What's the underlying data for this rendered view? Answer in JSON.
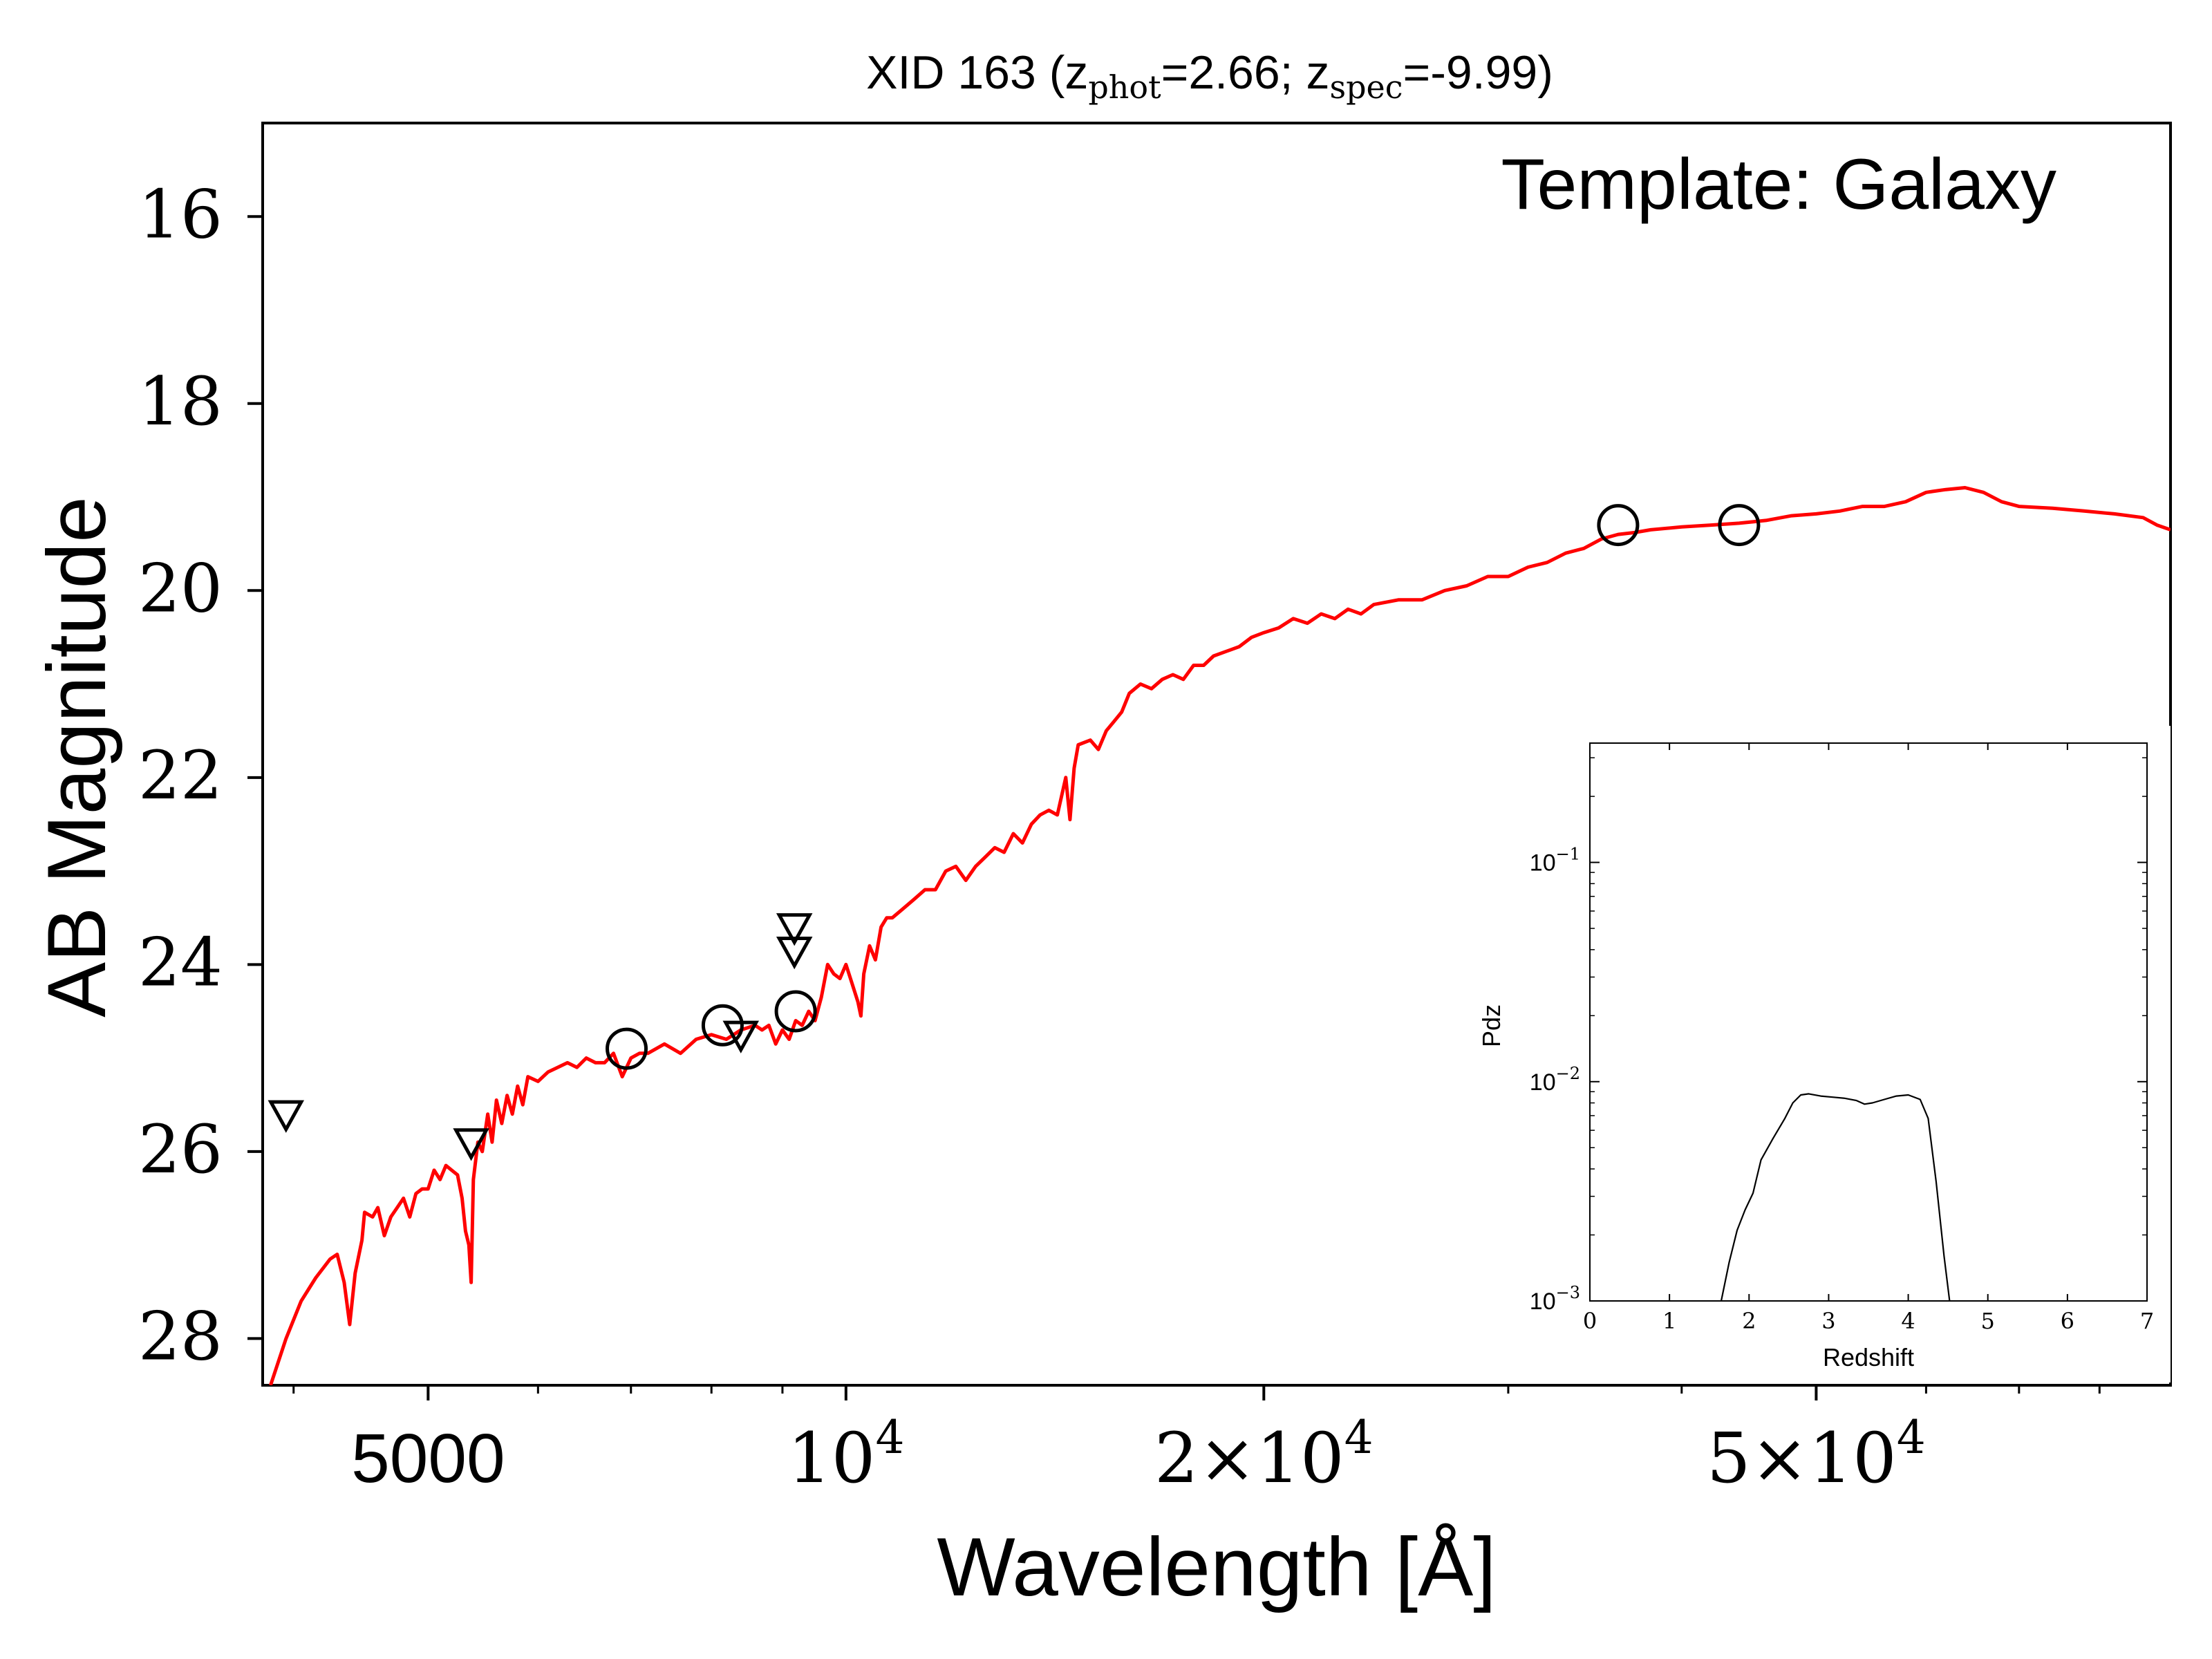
{
  "chart_data": [
    {
      "type": "line",
      "title": {
        "prefix": "XID 163 (z",
        "sub1": "phot",
        "mid": "=2.66; z",
        "sub2": "spec",
        "suffix": "=-9.99)"
      },
      "annotation": "Template: Galaxy",
      "xlabel": "Wavelength [Å]",
      "ylabel": "AB Magnitude",
      "xscale": "log",
      "xlim": [
        3800,
        90000
      ],
      "ylim": [
        28.5,
        15
      ],
      "yticks": [
        {
          "value": 16,
          "label": "16"
        },
        {
          "value": 18,
          "label": "18"
        },
        {
          "value": 20,
          "label": "20"
        },
        {
          "value": 22,
          "label": "22"
        },
        {
          "value": 24,
          "label": "24"
        },
        {
          "value": 26,
          "label": "26"
        },
        {
          "value": 28,
          "label": "28"
        }
      ],
      "xticks": [
        {
          "value": 5000,
          "label": "5000"
        },
        {
          "value": 10000,
          "base": "10",
          "exp": "4"
        },
        {
          "value": 20000,
          "mant": "2×10",
          "exp": "4"
        },
        {
          "value": 50000,
          "mant": "5×10",
          "exp": "4"
        }
      ],
      "xminor_ticks": [
        4000,
        6000,
        7000,
        8000,
        9000,
        30000,
        40000,
        60000,
        70000,
        80000,
        90000
      ],
      "grid": false,
      "colors": {
        "template": "#ff0000",
        "markers": "#000000"
      },
      "template_sed": {
        "color": "#ff0000",
        "points": [
          [
            3850,
            28.5
          ],
          [
            3950,
            28.0
          ],
          [
            4050,
            27.6
          ],
          [
            4150,
            27.35
          ],
          [
            4250,
            27.15
          ],
          [
            4300,
            27.1
          ],
          [
            4350,
            27.4
          ],
          [
            4390,
            27.85
          ],
          [
            4430,
            27.3
          ],
          [
            4480,
            26.95
          ],
          [
            4500,
            26.65
          ],
          [
            4560,
            26.7
          ],
          [
            4600,
            26.6
          ],
          [
            4650,
            26.9
          ],
          [
            4700,
            26.7
          ],
          [
            4750,
            26.6
          ],
          [
            4800,
            26.5
          ],
          [
            4850,
            26.7
          ],
          [
            4900,
            26.45
          ],
          [
            4950,
            26.4
          ],
          [
            5000,
            26.4
          ],
          [
            5050,
            26.2
          ],
          [
            5100,
            26.3
          ],
          [
            5150,
            26.15
          ],
          [
            5200,
            26.2
          ],
          [
            5250,
            26.25
          ],
          [
            5290,
            26.5
          ],
          [
            5320,
            26.85
          ],
          [
            5350,
            27.0
          ],
          [
            5370,
            27.4
          ],
          [
            5390,
            26.3
          ],
          [
            5430,
            25.9
          ],
          [
            5470,
            26.0
          ],
          [
            5520,
            25.6
          ],
          [
            5560,
            25.9
          ],
          [
            5600,
            25.45
          ],
          [
            5650,
            25.7
          ],
          [
            5700,
            25.4
          ],
          [
            5750,
            25.6
          ],
          [
            5800,
            25.3
          ],
          [
            5850,
            25.5
          ],
          [
            5900,
            25.2
          ],
          [
            6000,
            25.25
          ],
          [
            6100,
            25.15
          ],
          [
            6200,
            25.1
          ],
          [
            6300,
            25.05
          ],
          [
            6400,
            25.1
          ],
          [
            6500,
            25.0
          ],
          [
            6600,
            25.05
          ],
          [
            6700,
            25.05
          ],
          [
            6800,
            24.95
          ],
          [
            6900,
            25.2
          ],
          [
            7000,
            25.0
          ],
          [
            7100,
            24.95
          ],
          [
            7200,
            24.95
          ],
          [
            7400,
            24.85
          ],
          [
            7600,
            24.95
          ],
          [
            7800,
            24.8
          ],
          [
            8000,
            24.75
          ],
          [
            8200,
            24.8
          ],
          [
            8400,
            24.7
          ],
          [
            8600,
            24.65
          ],
          [
            8700,
            24.7
          ],
          [
            8800,
            24.65
          ],
          [
            8900,
            24.85
          ],
          [
            9000,
            24.7
          ],
          [
            9100,
            24.8
          ],
          [
            9200,
            24.6
          ],
          [
            9300,
            24.65
          ],
          [
            9400,
            24.5
          ],
          [
            9500,
            24.6
          ],
          [
            9600,
            24.35
          ],
          [
            9700,
            24.0
          ],
          [
            9800,
            24.1
          ],
          [
            9900,
            24.15
          ],
          [
            10000,
            24.0
          ],
          [
            10100,
            24.2
          ],
          [
            10200,
            24.4
          ],
          [
            10250,
            24.55
          ],
          [
            10300,
            24.1
          ],
          [
            10400,
            23.8
          ],
          [
            10500,
            23.95
          ],
          [
            10600,
            23.6
          ],
          [
            10700,
            23.5
          ],
          [
            10800,
            23.5
          ],
          [
            11000,
            23.4
          ],
          [
            11200,
            23.3
          ],
          [
            11400,
            23.2
          ],
          [
            11600,
            23.2
          ],
          [
            11800,
            23.0
          ],
          [
            12000,
            22.95
          ],
          [
            12200,
            23.1
          ],
          [
            12400,
            22.95
          ],
          [
            12600,
            22.85
          ],
          [
            12800,
            22.75
          ],
          [
            13000,
            22.8
          ],
          [
            13200,
            22.6
          ],
          [
            13400,
            22.7
          ],
          [
            13600,
            22.5
          ],
          [
            13800,
            22.4
          ],
          [
            14000,
            22.35
          ],
          [
            14200,
            22.4
          ],
          [
            14400,
            22.0
          ],
          [
            14500,
            22.45
          ],
          [
            14600,
            21.9
          ],
          [
            14700,
            21.65
          ],
          [
            15000,
            21.6
          ],
          [
            15200,
            21.7
          ],
          [
            15400,
            21.5
          ],
          [
            15600,
            21.4
          ],
          [
            15800,
            21.3
          ],
          [
            16000,
            21.1
          ],
          [
            16300,
            21.0
          ],
          [
            16600,
            21.05
          ],
          [
            16900,
            20.95
          ],
          [
            17200,
            20.9
          ],
          [
            17500,
            20.95
          ],
          [
            17800,
            20.8
          ],
          [
            18100,
            20.8
          ],
          [
            18400,
            20.7
          ],
          [
            18800,
            20.65
          ],
          [
            19200,
            20.6
          ],
          [
            19600,
            20.5
          ],
          [
            20000,
            20.45
          ],
          [
            20500,
            20.4
          ],
          [
            21000,
            20.3
          ],
          [
            21500,
            20.35
          ],
          [
            22000,
            20.25
          ],
          [
            22500,
            20.3
          ],
          [
            23000,
            20.2
          ],
          [
            23500,
            20.25
          ],
          [
            24000,
            20.15
          ],
          [
            25000,
            20.1
          ],
          [
            26000,
            20.1
          ],
          [
            27000,
            20.0
          ],
          [
            28000,
            19.95
          ],
          [
            29000,
            19.85
          ],
          [
            30000,
            19.85
          ],
          [
            31000,
            19.75
          ],
          [
            32000,
            19.7
          ],
          [
            33000,
            19.6
          ],
          [
            34000,
            19.55
          ],
          [
            35000,
            19.45
          ],
          [
            36000,
            19.4
          ],
          [
            37000,
            19.38
          ],
          [
            38000,
            19.35
          ],
          [
            40000,
            19.32
          ],
          [
            42000,
            19.3
          ],
          [
            44000,
            19.28
          ],
          [
            46000,
            19.25
          ],
          [
            48000,
            19.2
          ],
          [
            50000,
            19.18
          ],
          [
            52000,
            19.15
          ],
          [
            54000,
            19.1
          ],
          [
            56000,
            19.1
          ],
          [
            58000,
            19.05
          ],
          [
            60000,
            18.95
          ],
          [
            62000,
            18.92
          ],
          [
            64000,
            18.9
          ],
          [
            66000,
            18.95
          ],
          [
            68000,
            19.05
          ],
          [
            70000,
            19.1
          ],
          [
            74000,
            19.12
          ],
          [
            78000,
            19.15
          ],
          [
            82000,
            19.18
          ],
          [
            86000,
            19.22
          ],
          [
            88000,
            19.3
          ],
          [
            90000,
            19.35
          ]
        ]
      },
      "detections": [
        {
          "x": 6950,
          "y": 24.9
        },
        {
          "x": 8150,
          "y": 24.65
        },
        {
          "x": 9200,
          "y": 24.5
        },
        {
          "x": 36000,
          "y": 19.3
        },
        {
          "x": 44000,
          "y": 19.3
        }
      ],
      "upper_limits": [
        {
          "x": 3950,
          "y": 25.6
        },
        {
          "x": 5370,
          "y": 25.9
        },
        {
          "x": 8400,
          "y": 24.75
        },
        {
          "x": 9180,
          "y": 23.6
        },
        {
          "x": 9180,
          "y": 23.85
        }
      ]
    },
    {
      "type": "line",
      "name": "inset-pdz",
      "xlabel": "Redshift",
      "ylabel": "Pdz",
      "xscale": "linear",
      "yscale": "log",
      "xlim": [
        0,
        7
      ],
      "ylim": [
        0.001,
        0.35
      ],
      "xticks": [
        "0",
        "1",
        "2",
        "3",
        "4",
        "5",
        "6",
        "7"
      ],
      "yticks": [
        {
          "value": 0.1,
          "base": "10",
          "exp": "−1"
        },
        {
          "value": 0.01,
          "base": "10",
          "exp": "−2"
        },
        {
          "value": 0.001,
          "base": "10",
          "exp": "−3"
        }
      ],
      "grid": false,
      "curve": {
        "color": "#000000",
        "points": [
          [
            1.65,
            0.001
          ],
          [
            1.75,
            0.0015
          ],
          [
            1.85,
            0.0021
          ],
          [
            1.95,
            0.0026
          ],
          [
            2.05,
            0.0031
          ],
          [
            2.15,
            0.0044
          ],
          [
            2.3,
            0.0055
          ],
          [
            2.45,
            0.0068
          ],
          [
            2.55,
            0.008
          ],
          [
            2.65,
            0.0087
          ],
          [
            2.75,
            0.0088
          ],
          [
            2.9,
            0.0086
          ],
          [
            3.05,
            0.0085
          ],
          [
            3.2,
            0.0084
          ],
          [
            3.35,
            0.0082
          ],
          [
            3.45,
            0.0079
          ],
          [
            3.55,
            0.008
          ],
          [
            3.7,
            0.0083
          ],
          [
            3.85,
            0.0086
          ],
          [
            4.0,
            0.0087
          ],
          [
            4.15,
            0.0083
          ],
          [
            4.25,
            0.0068
          ],
          [
            4.35,
            0.0035
          ],
          [
            4.45,
            0.0016
          ],
          [
            4.52,
            0.001
          ]
        ]
      }
    }
  ]
}
